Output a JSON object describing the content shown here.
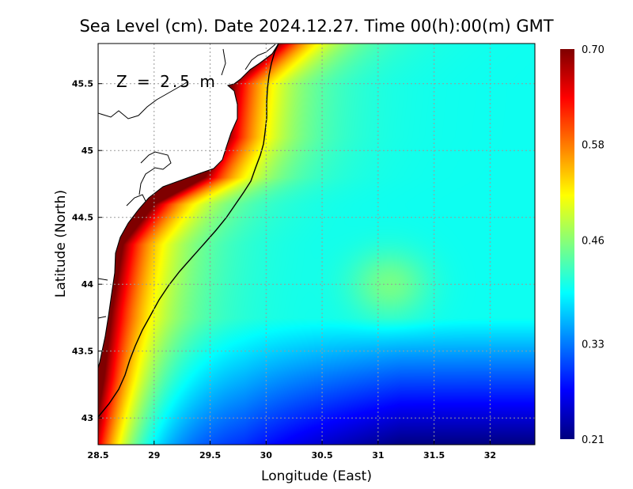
{
  "chart_data": {
    "type": "heatmap",
    "title": "Sea Level (cm). Date 2024.12.27. Time 00(h):00(m) GMT",
    "xlabel": "Longitude (East)",
    "ylabel": "Latitude (North)",
    "annotation": "Z = 2.5 m",
    "xlim": [
      28.5,
      32.4
    ],
    "ylim": [
      42.8,
      45.8
    ],
    "x_ticks": [
      28.5,
      29,
      29.5,
      30,
      30.5,
      31,
      31.5,
      32
    ],
    "x_tick_labels": [
      "28.5",
      "29",
      "29.5",
      "30",
      "30.5",
      "31",
      "31.5",
      "32"
    ],
    "y_ticks": [
      43,
      43.5,
      44,
      44.5,
      45,
      45.5
    ],
    "y_tick_labels": [
      "43",
      "43.5",
      "44",
      "44.5",
      "45",
      "45.5"
    ],
    "grid": true,
    "colorbar": {
      "min": 0.21,
      "max": 0.7,
      "ticks": [
        0.21,
        0.33,
        0.46,
        0.58,
        0.7
      ],
      "tick_labels": [
        "0.21",
        "0.33",
        "0.46",
        "0.58",
        "0.70"
      ],
      "colormap": "jet"
    },
    "field_features": {
      "coastal_maximum": 0.7,
      "open_sea_background": 0.4,
      "southern_minimum": 0.21,
      "eddy_center_lon_lat": [
        31.1,
        44.0
      ],
      "eddy_value": 0.45,
      "contour_level": 0.58
    }
  }
}
